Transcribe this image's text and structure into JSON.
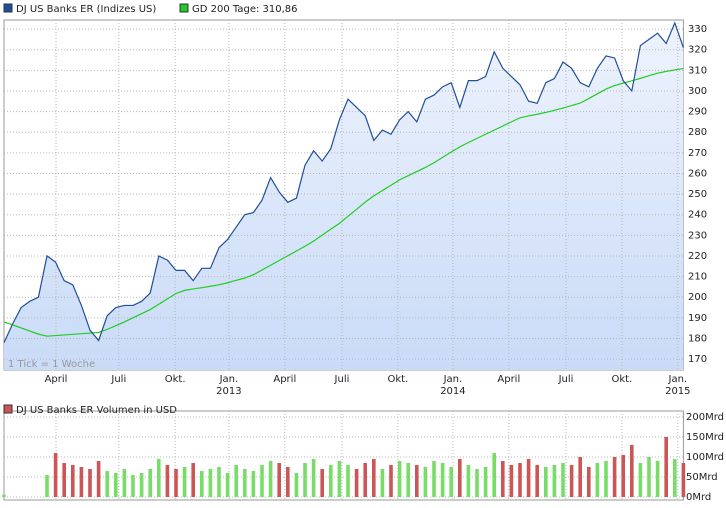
{
  "chart_data": [
    {
      "type": "line",
      "annotation": "1 Tick = 1 Woche",
      "x": [
        0,
        2,
        4,
        6,
        8,
        10,
        12,
        14,
        16,
        18,
        20,
        22,
        24,
        26,
        28,
        30,
        32,
        34,
        36,
        38,
        40,
        42,
        44,
        46,
        48,
        50,
        52,
        54,
        56,
        58,
        60,
        62,
        64,
        66,
        68,
        70,
        72,
        74,
        76,
        78,
        80,
        82,
        84,
        86,
        88,
        90,
        92,
        94,
        96,
        98,
        100,
        102,
        104,
        106,
        108,
        110,
        112,
        114,
        116,
        118,
        120,
        122,
        124,
        126,
        128,
        130,
        132,
        134,
        136,
        138,
        140,
        142,
        144,
        146,
        148,
        150,
        152,
        154,
        156,
        158
      ],
      "xlim": [
        0,
        158
      ],
      "xticks": [
        {
          "value": 12.1,
          "label": "April"
        },
        {
          "value": 26.7,
          "label": "Juli"
        },
        {
          "value": 39.8,
          "label": "Okt."
        },
        {
          "value": 52.3,
          "label": "Jan."
        },
        {
          "value": 65.3,
          "label": "April"
        },
        {
          "value": 78.6,
          "label": "Juli"
        },
        {
          "value": 91.6,
          "label": "Okt."
        },
        {
          "value": 104.4,
          "label": "Jan."
        },
        {
          "value": 117.4,
          "label": "April"
        },
        {
          "value": 130.7,
          "label": "Juli"
        },
        {
          "value": 143.7,
          "label": "Okt."
        },
        {
          "value": 156.7,
          "label": "Jan."
        }
      ],
      "x_year_labels": [
        {
          "value": 52.3,
          "label": "2013"
        },
        {
          "value": 104.4,
          "label": "2014"
        },
        {
          "value": 156.7,
          "label": "2015"
        }
      ],
      "ylim": [
        164.7,
        334.4
      ],
      "yticks": [
        170,
        180,
        190,
        200,
        210,
        220,
        230,
        240,
        250,
        260,
        270,
        280,
        290,
        300,
        310,
        320,
        330
      ],
      "grid": true,
      "area_color": "#d6e4fa",
      "series": [
        {
          "name": "DJ US Banks ER (Indizes US)",
          "color": "#1f4e9c",
          "values": [
            178,
            187,
            195,
            198,
            200,
            220,
            217,
            208,
            206,
            196,
            184,
            179,
            191,
            195,
            196,
            196,
            198,
            202,
            220,
            218,
            213,
            213,
            208,
            214,
            214,
            224,
            228,
            234,
            240,
            241,
            247,
            258,
            251,
            246,
            248,
            264,
            271,
            266,
            272,
            286,
            296,
            292,
            288,
            276,
            281,
            279,
            286,
            290,
            285,
            296,
            298,
            302,
            304,
            292,
            305,
            305,
            307,
            319,
            311,
            307,
            303,
            295,
            294,
            304,
            306,
            314,
            311,
            304,
            302,
            311,
            317,
            316,
            305,
            300,
            322,
            325,
            328,
            323,
            333,
            321
          ]
        },
        {
          "name": "GD 200 Tage: 310,86",
          "color": "#22cc22",
          "values": [
            188,
            186.6,
            185.1,
            183.6,
            182.1,
            181.1,
            181.4,
            181.7,
            182,
            182.3,
            182.6,
            182.9,
            184.4,
            186.2,
            188,
            190,
            192,
            194,
            196.6,
            199.2,
            201.8,
            203.3,
            204,
            204.6,
            205.3,
            206,
            207,
            208.2,
            209.3,
            210.9,
            213.2,
            215.5,
            217.8,
            220.1,
            222.4,
            224.7,
            227.2,
            230.1,
            233,
            235.8,
            239.2,
            242.6,
            246.1,
            249.1,
            251.7,
            254.3,
            256.9,
            258.9,
            260.9,
            262.9,
            265.2,
            267.8,
            270.4,
            272.9,
            275,
            277,
            279,
            281,
            283,
            285,
            287,
            287.9,
            288.7,
            289.6,
            290.6,
            291.7,
            292.9,
            294.1,
            296.3,
            298.6,
            300.9,
            302.6,
            303.8,
            304.9,
            306.1,
            307.4,
            308.6,
            309.5,
            310.2,
            310.86
          ]
        }
      ]
    },
    {
      "type": "bar",
      "name": "DJ US Banks ER Volumen in USD",
      "legend_color": "#cc5555",
      "up_color": "#77dd66",
      "down_color": "#cc5555",
      "values": [
        6,
        null,
        null,
        null,
        null,
        55,
        110,
        85,
        80,
        75,
        70,
        90,
        65,
        60,
        70,
        55,
        60,
        70,
        95,
        80,
        70,
        75,
        85,
        65,
        70,
        75,
        60,
        80,
        70,
        65,
        80,
        90,
        85,
        75,
        60,
        85,
        95,
        70,
        80,
        90,
        80,
        70,
        85,
        95,
        70,
        80,
        90,
        85,
        80,
        75,
        90,
        85,
        75,
        95,
        80,
        70,
        75,
        110,
        90,
        80,
        85,
        95,
        80,
        75,
        80,
        85,
        80,
        100,
        75,
        85,
        90,
        100,
        105,
        130,
        85,
        100,
        90,
        150,
        95,
        85
      ],
      "ylim": [
        0,
        215
      ],
      "yticks": [
        {
          "value": 0,
          "label": "0Mrd"
        },
        {
          "value": 50,
          "label": "50Mrd"
        },
        {
          "value": 100,
          "label": "100Mrd"
        },
        {
          "value": 150,
          "label": "150Mrd"
        },
        {
          "value": 200,
          "label": "200Mrd"
        }
      ],
      "grid": true
    }
  ]
}
